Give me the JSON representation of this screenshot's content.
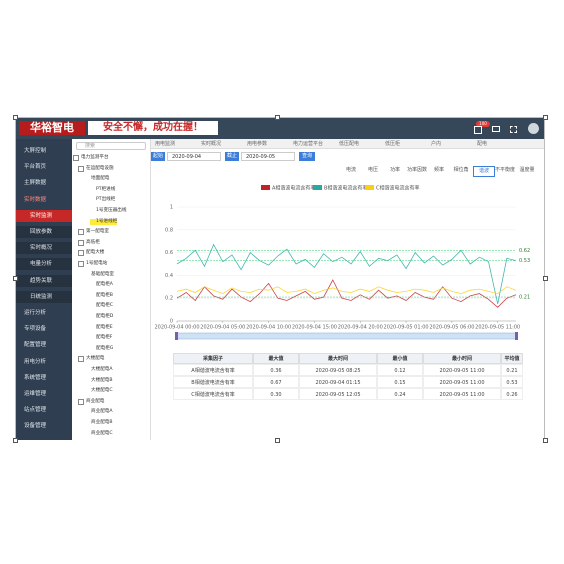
{
  "header": {
    "logo": "华裕智电",
    "slogan": "安全不懈，成功在握！",
    "badge": "100"
  },
  "sidebar": [
    {
      "label": "大屏控制"
    },
    {
      "label": "平台首页"
    },
    {
      "label": "主屏数据"
    },
    {
      "label": "实时数据",
      "active": true
    },
    {
      "label": "实时监测",
      "sub": true,
      "selected": true
    },
    {
      "label": "回放参数",
      "sub": true
    },
    {
      "label": "实时概况",
      "sub": true
    },
    {
      "label": "电量分析",
      "sub": true
    },
    {
      "label": "趋势关联",
      "sub": true
    },
    {
      "label": "日统监测",
      "sub": true
    },
    {
      "label": "运行分析"
    },
    {
      "label": "专项设备"
    },
    {
      "label": "配置管理"
    },
    {
      "label": "用电分析"
    },
    {
      "label": "系统管理"
    },
    {
      "label": "运维管理"
    },
    {
      "label": "站点管理"
    },
    {
      "label": "设备管理"
    }
  ],
  "search_placeholder": "搜索",
  "tree": [
    {
      "label": "电力监测平台",
      "level": 0
    },
    {
      "label": "在运配电设施",
      "level": 1
    },
    {
      "label": "地面配电",
      "level": 2
    },
    {
      "label": "PT柜进线",
      "level": 3
    },
    {
      "label": "PT出线柜",
      "level": 3
    },
    {
      "label": "1号变压器出线",
      "level": 3
    },
    {
      "label": "1号进线柜",
      "level": 3,
      "selected": true
    },
    {
      "label": "第一配电室",
      "level": 1
    },
    {
      "label": "高低柜",
      "level": 1
    },
    {
      "label": "配电大楼",
      "level": 1
    },
    {
      "label": "1号配电站",
      "level": 1
    },
    {
      "label": "基础配电室",
      "level": 2
    },
    {
      "label": "配电柜A",
      "level": 3
    },
    {
      "label": "配电柜B",
      "level": 3
    },
    {
      "label": "配电柜C",
      "level": 3
    },
    {
      "label": "配电柜D",
      "level": 3
    },
    {
      "label": "配电柜E",
      "level": 3
    },
    {
      "label": "配电柜F",
      "level": 3
    },
    {
      "label": "配电柜G",
      "level": 3
    },
    {
      "label": "大楼配电",
      "level": 1
    },
    {
      "label": "大楼配电A",
      "level": 2
    },
    {
      "label": "大楼配电B",
      "level": 2
    },
    {
      "label": "大楼配电C",
      "level": 2
    },
    {
      "label": "商业配电",
      "level": 1
    },
    {
      "label": "商业配电A",
      "level": 2
    },
    {
      "label": "商业配电B",
      "level": 2
    },
    {
      "label": "商业配电C",
      "level": 2
    }
  ],
  "breadcrumb": [
    "用电监测",
    "实时概况",
    "用电参数",
    "电力运营平台",
    "低压配电",
    "低压柜",
    "户内",
    "配电"
  ],
  "query": {
    "start_label": "起始",
    "start": "2020-09-04",
    "end_label": "截止",
    "end": "2020-09-05",
    "button": "查询"
  },
  "tabs": [
    {
      "label": "电流"
    },
    {
      "label": "电压"
    },
    {
      "label": "功率"
    },
    {
      "label": "功率因数"
    },
    {
      "label": "频率"
    },
    {
      "label": "相位角"
    },
    {
      "label": "谐波",
      "active": true
    },
    {
      "label": "不平衡度"
    },
    {
      "label": "温度量"
    }
  ],
  "chart_data": {
    "type": "line",
    "categories": [
      "2020-09-04 00:00",
      null,
      null,
      null,
      null,
      "2020-09-04 05:00",
      null,
      null,
      null,
      null,
      "2020-09-04 10:00",
      null,
      null,
      null,
      null,
      "2020-09-04 15:00",
      null,
      null,
      null,
      null,
      "2020-09-04 20:00",
      null,
      null,
      null,
      null,
      "2020-09-05 01:00",
      null,
      null,
      null,
      null,
      "2020-09-05 06:00",
      null,
      null,
      null,
      null,
      "2020-09-05 11:00",
      null,
      null
    ],
    "series": [
      {
        "name": "A相谐波电流含有率",
        "color": "#c1232b",
        "values": [
          0.2,
          0.25,
          0.18,
          0.3,
          0.22,
          0.19,
          0.28,
          0.21,
          0.17,
          0.24,
          0.33,
          0.2,
          0.18,
          0.22,
          0.26,
          0.19,
          0.21,
          0.36,
          0.2,
          0.18,
          0.23,
          0.19,
          0.27,
          0.2,
          0.22,
          0.18,
          0.25,
          0.21,
          0.19,
          0.3,
          0.2,
          0.17,
          0.22,
          0.24,
          0.19,
          0.12,
          0.2,
          0.23
        ]
      },
      {
        "name": "B相谐波电流含有率",
        "color": "#27a9a1",
        "values": [
          0.5,
          0.55,
          0.62,
          0.48,
          0.67,
          0.52,
          0.58,
          0.45,
          0.6,
          0.53,
          0.49,
          0.57,
          0.63,
          0.5,
          0.54,
          0.47,
          0.59,
          0.52,
          0.56,
          0.5,
          0.61,
          0.48,
          0.55,
          0.53,
          0.58,
          0.46,
          0.6,
          0.51,
          0.57,
          0.49,
          0.54,
          0.62,
          0.5,
          0.56,
          0.52,
          0.15,
          0.55,
          0.53
        ]
      },
      {
        "name": "C相谐波电流含有率",
        "color": "#fcce10",
        "values": [
          0.26,
          0.28,
          0.25,
          0.3,
          0.27,
          0.24,
          0.29,
          0.26,
          0.25,
          0.28,
          0.27,
          0.3,
          0.25,
          0.26,
          0.28,
          0.24,
          0.27,
          0.29,
          0.26,
          0.25,
          0.28,
          0.26,
          0.3,
          0.27,
          0.25,
          0.26,
          0.28,
          0.27,
          0.25,
          0.29,
          0.26,
          0.24,
          0.27,
          0.28,
          0.26,
          0.24,
          0.3,
          0.27
        ]
      }
    ],
    "ylim": [
      0,
      1
    ],
    "yticks": [
      0,
      0.2,
      0.4,
      0.6,
      0.8,
      1
    ],
    "grid": true,
    "mark_lines": [
      0.62,
      0.53,
      0.21
    ]
  },
  "table": {
    "headers": [
      "采集因子",
      "最大值",
      "最大时间",
      "最小值",
      "最小时间",
      "平均值"
    ],
    "rows": [
      [
        "A相谐波电流含有率",
        "0.36",
        "2020-09-05 08:25",
        "0.12",
        "2020-09-05 11:00",
        "0.21"
      ],
      [
        "B相谐波电流含有率",
        "0.67",
        "2020-09-04 01:15",
        "0.15",
        "2020-09-05 11:00",
        "0.53"
      ],
      [
        "C相谐波电流含有率",
        "0.30",
        "2020-09-05 12:05",
        "0.24",
        "2020-09-05 11:00",
        "0.26"
      ]
    ]
  }
}
